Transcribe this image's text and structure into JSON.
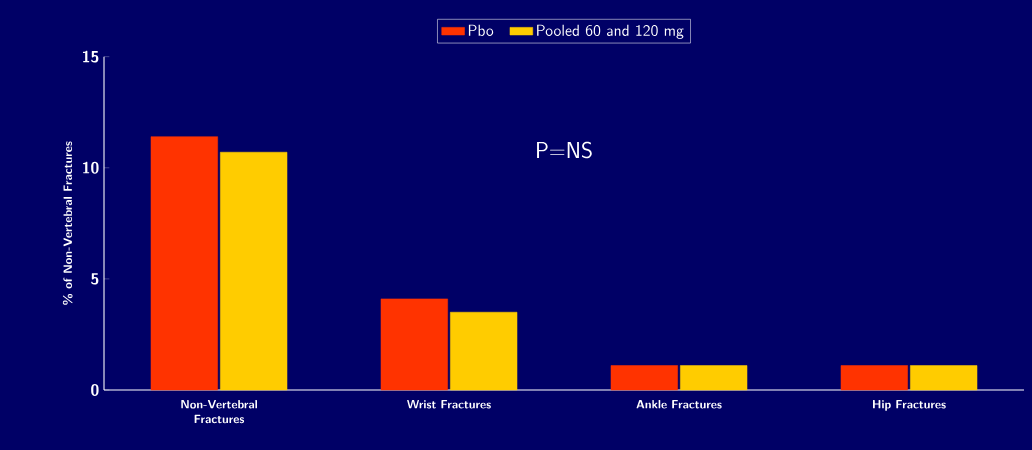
{
  "chart_data": {
    "type": "bar",
    "ylabel": "% of Non-Vertebral Fractures",
    "categories": [
      "Non-Vertebral Fractures",
      "Wrist Fractures",
      "Ankle Fractures",
      "Hip Fractures"
    ],
    "series": [
      {
        "name": "Pbo",
        "color": "#ff3300",
        "values": [
          11.4,
          4.1,
          1.1,
          1.1
        ]
      },
      {
        "name": "Pooled 60 and 120 mg",
        "color": "#ffcc00",
        "values": [
          10.7,
          3.5,
          1.1,
          1.1
        ]
      }
    ],
    "ylim": [
      0,
      15
    ],
    "yticks": [
      0,
      5,
      10,
      15
    ],
    "legend": "top",
    "annotations": [
      "P=NS"
    ]
  }
}
